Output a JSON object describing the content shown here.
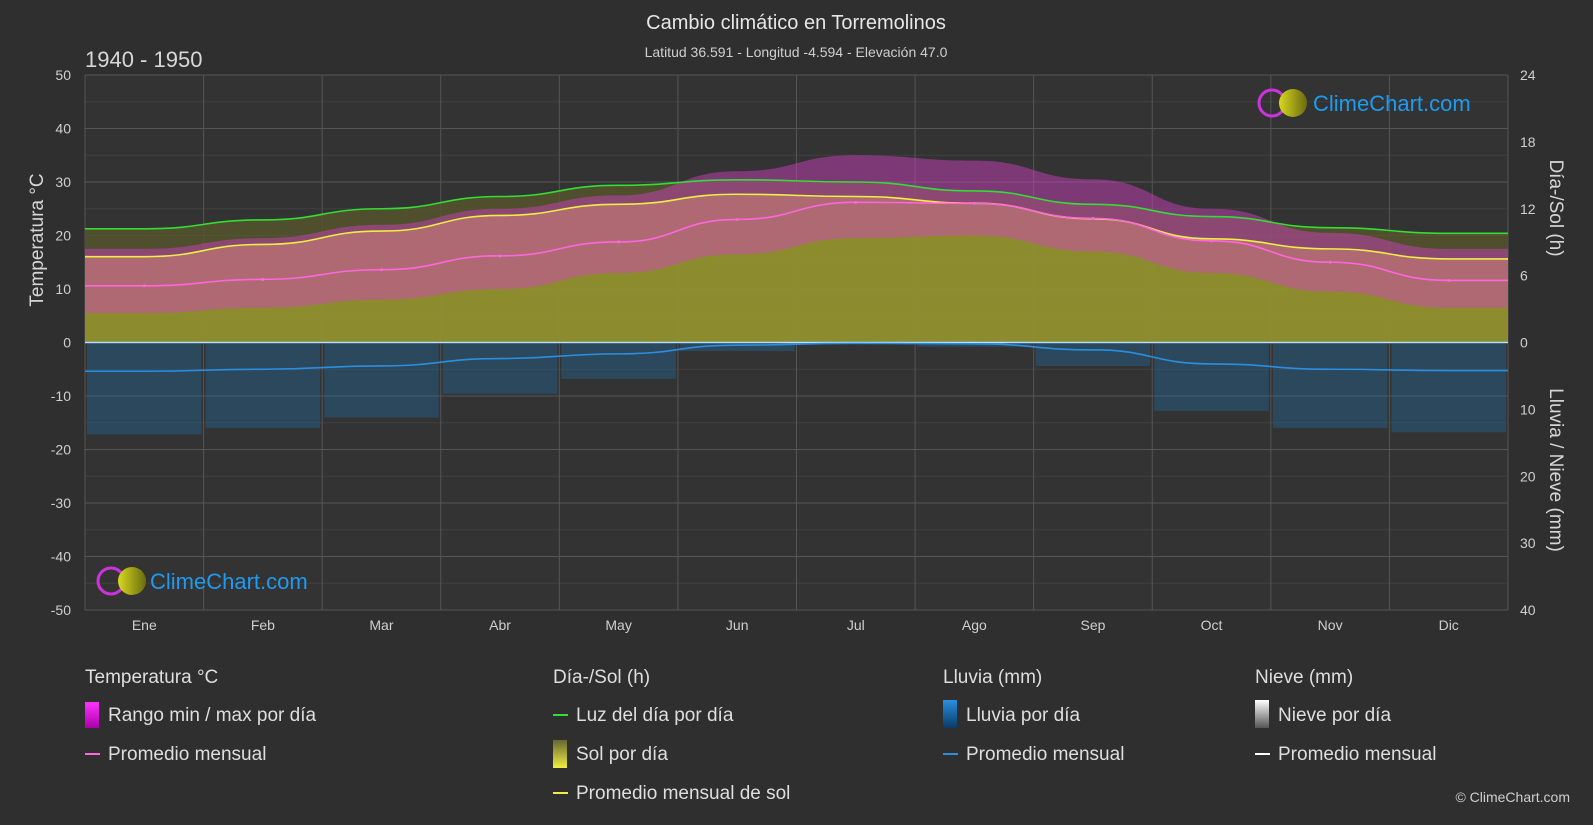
{
  "header": {
    "title": "Cambio climático en Torremolinos",
    "subtitle": "Latitud 36.591 - Longitud -4.594 - Elevación 47.0",
    "period": "1940 - 1950"
  },
  "axes": {
    "left_label": "Temperatura °C",
    "right_top_label": "Día-/Sol (h)",
    "right_bottom_label": "Lluvia / Nieve (mm)",
    "left_ticks": [
      "50",
      "40",
      "30",
      "20",
      "10",
      "0",
      "-10",
      "-20",
      "-30",
      "-40",
      "-50"
    ],
    "right_top_ticks": [
      "24",
      "18",
      "12",
      "6",
      "0"
    ],
    "right_bottom_ticks": [
      "10",
      "20",
      "30",
      "40"
    ]
  },
  "logo": {
    "text": "ClimeChart.com"
  },
  "copyright": "© ClimeChart.com",
  "legend": {
    "temp": {
      "heading": "Temperatura °C",
      "item1": "Rango min / max por día",
      "item2": "Promedio mensual"
    },
    "sun": {
      "heading": "Día-/Sol (h)",
      "item1": "Luz del día por día",
      "item2": "Sol por día",
      "item3": "Promedio mensual de sol"
    },
    "rain": {
      "heading": "Lluvia (mm)",
      "item1": "Lluvia por día",
      "item2": "Promedio mensual"
    },
    "snow": {
      "heading": "Nieve (mm)",
      "item1": "Nieve por día",
      "item2": "Promedio mensual"
    }
  },
  "chart_data": {
    "type": "area",
    "categories": [
      "Ene",
      "Feb",
      "Mar",
      "Abr",
      "May",
      "Jun",
      "Jul",
      "Ago",
      "Sep",
      "Oct",
      "Nov",
      "Dic"
    ],
    "temp_ylim": [
      -50,
      50
    ],
    "sun_ylim": [
      0,
      24
    ],
    "rain_ylim": [
      0,
      40
    ],
    "grid": true,
    "colors": {
      "background": "#2f2f2f",
      "temp_range": "#d63fc8",
      "temp_avg": "#ff66dd",
      "daylight": "#33dd33",
      "sunshine": "#a0a030",
      "sun_avg": "#eeee44",
      "rain": "#1e6fa8",
      "rain_avg": "#2a8fe0",
      "snow_avg": "#ffffff",
      "logo": "#1e9bf0"
    },
    "series": [
      {
        "name": "Luz del día por día",
        "unit": "h",
        "values": [
          10.2,
          11.0,
          12.0,
          13.1,
          14.1,
          14.6,
          14.4,
          13.6,
          12.4,
          11.3,
          10.3,
          9.8
        ]
      },
      {
        "name": "Promedio mensual de sol",
        "unit": "h",
        "values": [
          7.7,
          8.8,
          10.0,
          11.4,
          12.4,
          13.3,
          13.1,
          12.5,
          11.1,
          9.3,
          8.4,
          7.5
        ]
      },
      {
        "name": "Promedio mensual",
        "unit": "°C",
        "values": [
          10.6,
          11.8,
          13.6,
          16.2,
          18.8,
          23.0,
          26.2,
          26.0,
          23.2,
          19.0,
          15.0,
          11.6
        ]
      },
      {
        "name": "Rango max por día",
        "unit": "°C",
        "values": [
          17.5,
          19.5,
          22.0,
          25.0,
          27.5,
          32.0,
          35.0,
          34.0,
          30.5,
          25.0,
          20.5,
          17.5
        ]
      },
      {
        "name": "Rango min por día",
        "unit": "°C",
        "values": [
          5.5,
          6.5,
          8.0,
          10.0,
          13.0,
          16.5,
          19.5,
          20.0,
          17.0,
          13.0,
          9.5,
          6.5
        ]
      },
      {
        "name": "Lluvia promedio mensual",
        "unit": "mm",
        "values": [
          4.3,
          4.0,
          3.5,
          2.4,
          1.7,
          0.4,
          0.1,
          0.2,
          1.1,
          3.2,
          4.0,
          4.2
        ]
      },
      {
        "name": "Nieve promedio mensual",
        "unit": "mm",
        "values": [
          0,
          0,
          0,
          0,
          0,
          0,
          0,
          0,
          0,
          0,
          0,
          0
        ]
      }
    ]
  }
}
